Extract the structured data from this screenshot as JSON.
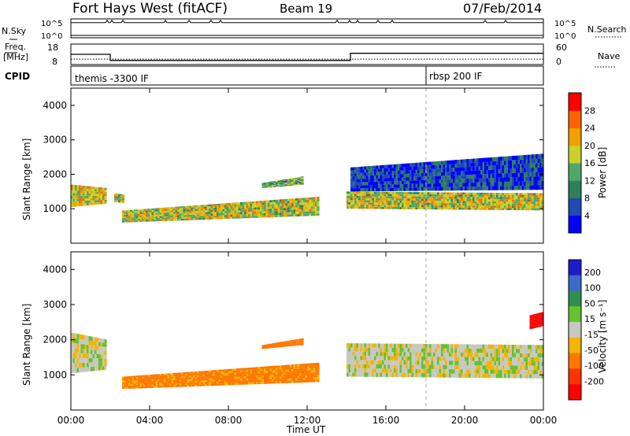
{
  "header": {
    "station": "Fort Hays West (fitACF)",
    "beam": "Beam 19",
    "date": "07/Feb/2014"
  },
  "strip_labels": {
    "nsky": "N.Sky",
    "nsearch": "N.Search",
    "freq_line1": "Freq.",
    "freq_line2": "[MHz]",
    "nave": "Nave",
    "cpid": "CPID",
    "noise_tick_top": "10^5",
    "noise_tick_bottom": "10^0",
    "freq_tick_top": "18",
    "freq_tick_bottom": "8",
    "nave_tick_top": "60",
    "nave_tick_bottom": "0"
  },
  "cpid_labels": [
    "themis -3300 IF",
    "rbsp 200 IF"
  ],
  "axes": {
    "ylabel": "Slant Range [km]",
    "xlabel": "Time UT",
    "yticks": [
      "1000",
      "2000",
      "3000",
      "4000"
    ],
    "xticks": [
      "00:00",
      "04:00",
      "08:00",
      "12:00",
      "16:00",
      "20:00",
      "00:00"
    ]
  },
  "colorbars": {
    "power_label": "Power [dB]",
    "power_ticks": [
      "4",
      "8",
      "12",
      "16",
      "20",
      "24",
      "28"
    ],
    "power_colors": [
      "#0000ff",
      "#1e4bb4",
      "#2f7f5a",
      "#4fa86a",
      "#c8d22a",
      "#f0a000",
      "#ff6400",
      "#ff0000"
    ],
    "velocity_label": "Velocity [m s⁻¹]",
    "velocity_ticks": [
      "200",
      "100",
      "50",
      "15",
      "-15",
      "-50",
      "-100",
      "-200"
    ],
    "velocity_colors": [
      "#1c1ccc",
      "#3a6cc8",
      "#2f8f4f",
      "#66c22e",
      "#c8c8c2",
      "#f5b400",
      "#ff7700",
      "#ff3300",
      "#ff0000"
    ]
  },
  "chart_data": [
    {
      "type": "line",
      "name": "noise_strip",
      "x_hours": [
        0,
        24
      ],
      "nsky_level": 10000.0,
      "nsearch_level": 1.0,
      "ylim_log10": [
        0,
        5
      ]
    },
    {
      "type": "line",
      "name": "freq_nave_strip",
      "freq_segments": [
        {
          "x": [
            0,
            2
          ],
          "y": 13
        },
        {
          "x": [
            2,
            14.2
          ],
          "y": 10
        },
        {
          "x": [
            14.2,
            24
          ],
          "y": 13.5
        }
      ],
      "nave_level": 16,
      "freq_ylim": [
        8,
        18
      ],
      "nave_ylim": [
        0,
        60
      ]
    },
    {
      "type": "heatmap",
      "name": "power",
      "x_range_hours": [
        0,
        24
      ],
      "y_range_km": [
        0,
        4500
      ],
      "cbar_range_db": [
        0,
        32
      ],
      "bands": [
        {
          "t": [
            0,
            1.8
          ],
          "r_low": [
            1050,
            1150
          ],
          "r_high": [
            1700,
            1600
          ],
          "value_db": 20
        },
        {
          "t": [
            2.2,
            2.7
          ],
          "r_low": [
            1200,
            1150
          ],
          "r_high": [
            1450,
            1400
          ],
          "value_db": 18
        },
        {
          "t": [
            2.6,
            12.6
          ],
          "r_low": [
            600,
            800
          ],
          "r_high": [
            950,
            1350
          ],
          "value_db": 18
        },
        {
          "t": [
            9.7,
            11.8
          ],
          "r_low": [
            1600,
            1700
          ],
          "r_high": [
            1750,
            1950
          ],
          "value_db": 14
        },
        {
          "t": [
            14.0,
            24.0
          ],
          "r_low": [
            1000,
            950
          ],
          "r_high": [
            1500,
            1450
          ],
          "value_db": 18
        },
        {
          "t": [
            14.2,
            24.0
          ],
          "r_low": [
            1500,
            1550
          ],
          "r_high": [
            2200,
            2600
          ],
          "value_db": 5
        }
      ]
    },
    {
      "type": "heatmap",
      "name": "velocity",
      "x_range_hours": [
        0,
        24
      ],
      "y_range_km": [
        0,
        4500
      ],
      "cbar_range_ms": [
        -200,
        200
      ],
      "bands": [
        {
          "t": [
            0,
            1.8
          ],
          "r_low": [
            1050,
            1150
          ],
          "r_high": [
            2200,
            2000
          ],
          "value_ms": 0
        },
        {
          "t": [
            2.6,
            12.6
          ],
          "r_low": [
            600,
            800
          ],
          "r_high": [
            950,
            1350
          ],
          "value_ms": -40
        },
        {
          "t": [
            9.7,
            11.8
          ],
          "r_low": [
            1750,
            1850
          ],
          "r_high": [
            1850,
            2050
          ],
          "value_ms": -60
        },
        {
          "t": [
            14.0,
            24.0
          ],
          "r_low": [
            950,
            900
          ],
          "r_high": [
            1900,
            1850
          ],
          "value_ms": 0
        },
        {
          "t": [
            23.3,
            24.0
          ],
          "r_low": [
            2300,
            2400
          ],
          "r_high": [
            2700,
            2800
          ],
          "value_ms": -180
        }
      ]
    }
  ]
}
